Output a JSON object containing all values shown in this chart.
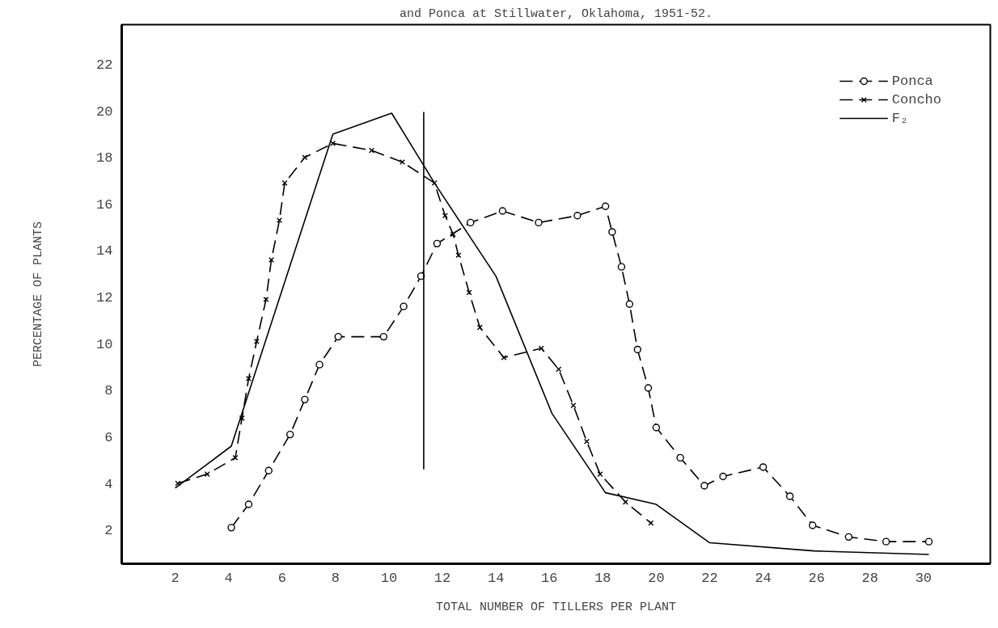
{
  "chart_data": {
    "type": "line",
    "title": "and Ponca at Stillwater, Oklahoma, 1951-52.",
    "xlabel": "TOTAL NUMBER OF TILLERS PER PLANT",
    "ylabel": "PERCENTAGE OF PLANTS",
    "xlim": [
      0,
      32.5
    ],
    "ylim": [
      0.55,
      23.7
    ],
    "xticks": [
      2,
      4,
      6,
      8,
      10,
      12,
      14,
      16,
      18,
      20,
      22,
      24,
      26,
      28,
      30
    ],
    "yticks": [
      2,
      4,
      6,
      8,
      10,
      12,
      14,
      16,
      18,
      20,
      22
    ],
    "grid": false,
    "legend": "top right",
    "series": [
      {
        "name": "Ponca",
        "color": "#000000",
        "marker": "circle",
        "line_style": "dashed",
        "x": [
          4.1,
          4.75,
          5.5,
          6.3,
          6.85,
          7.4,
          8.1,
          9.8,
          10.55,
          11.2,
          11.8,
          13.05,
          14.25,
          15.6,
          17.05,
          18.1,
          18.35,
          18.7,
          19.0,
          19.3,
          19.7,
          20.0,
          20.9,
          21.8,
          22.5,
          24.0,
          25.0,
          25.85,
          27.2,
          28.6,
          30.2
        ],
        "values": [
          2.1,
          3.1,
          4.55,
          6.1,
          7.6,
          9.1,
          10.3,
          10.3,
          11.6,
          12.9,
          14.3,
          15.2,
          15.7,
          15.2,
          15.5,
          15.9,
          14.8,
          13.3,
          11.7,
          9.75,
          8.1,
          6.4,
          5.1,
          3.9,
          4.3,
          4.7,
          3.45,
          2.2,
          1.7,
          1.5,
          1.5
        ]
      },
      {
        "name": "Concho",
        "color": "#000000",
        "marker": "cross",
        "line_style": "dashed",
        "x": [
          2.1,
          3.2,
          4.25,
          4.5,
          4.75,
          5.05,
          5.4,
          5.6,
          5.9,
          6.1,
          6.85,
          7.9,
          9.35,
          10.5,
          11.7,
          12.1,
          12.4,
          12.6,
          13.0,
          13.4,
          14.3,
          15.7,
          16.35,
          16.9,
          17.4,
          17.9,
          18.85,
          19.8
        ],
        "values": [
          4.0,
          4.4,
          5.1,
          6.8,
          8.5,
          10.1,
          11.9,
          13.6,
          15.3,
          16.9,
          18.0,
          18.6,
          18.3,
          17.8,
          16.9,
          15.5,
          14.7,
          13.8,
          12.2,
          10.7,
          9.4,
          9.8,
          8.9,
          7.35,
          5.8,
          4.4,
          3.2,
          2.3
        ]
      },
      {
        "name": "F₂",
        "color": "#000000",
        "marker": "none",
        "line_style": "solid",
        "x": [
          2.0,
          4.1,
          7.9,
          10.1,
          11.7,
          14.0,
          16.1,
          18.1,
          20.0,
          22.0,
          25.9,
          30.2
        ],
        "values": [
          3.8,
          5.6,
          19.0,
          19.9,
          16.9,
          12.9,
          7.0,
          3.6,
          3.1,
          1.45,
          1.1,
          0.95
        ]
      },
      {
        "color": "#000000",
        "marker": "none",
        "line_style": "solid",
        "x": [
          11.3,
          11.3
        ],
        "values": [
          4.6,
          19.95
        ]
      }
    ]
  }
}
